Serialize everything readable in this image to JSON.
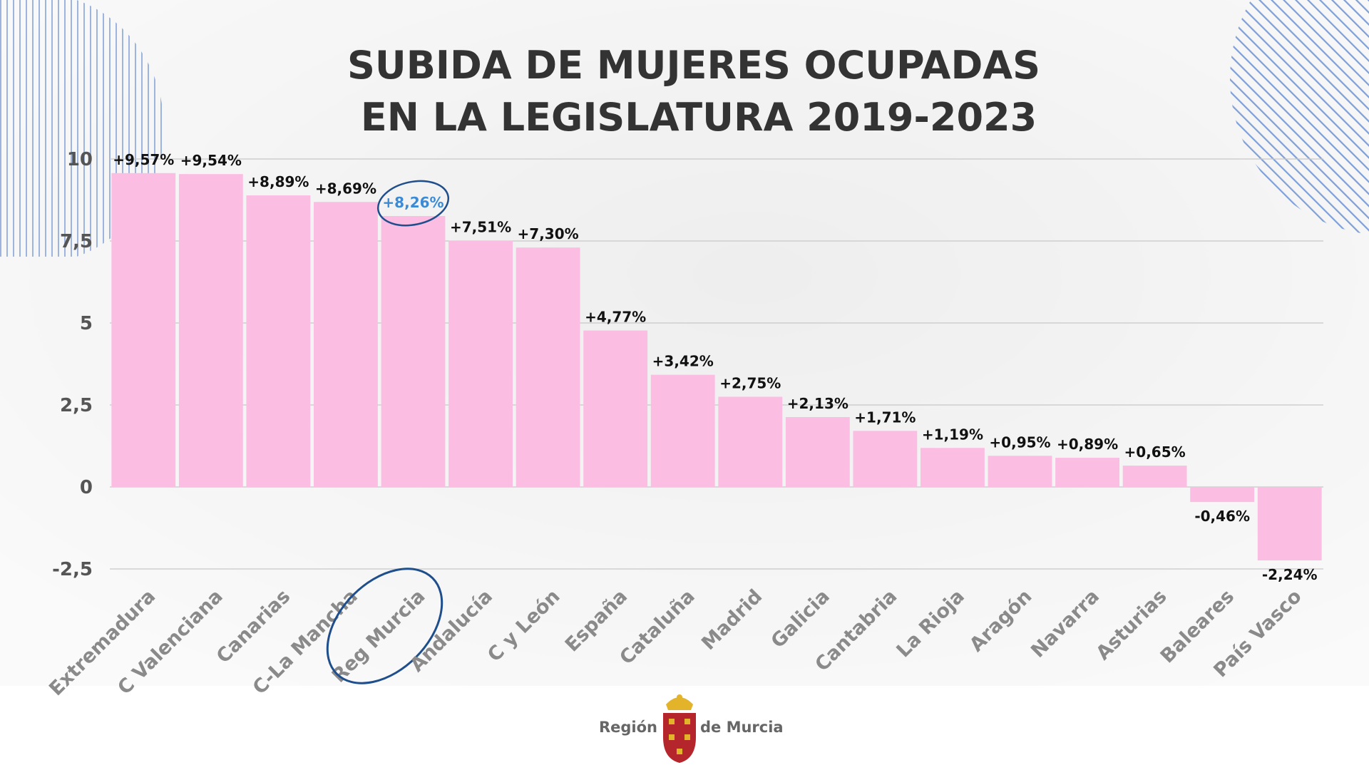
{
  "chart_data": {
    "type": "bar",
    "title": [
      "SUBIDA DE MUJERES OCUPADAS",
      "EN LA LEGISLATURA 2019-2023"
    ],
    "categories": [
      "Extremadura",
      "C Valenciana",
      "Canarias",
      "C-La Mancha",
      "Reg Murcia",
      "Andalucía",
      "C y León",
      "España",
      "Cataluña",
      "Madrid",
      "Galicia",
      "Cantabria",
      "La Rioja",
      "Aragón",
      "Navarra",
      "Asturias",
      "Baleares",
      "País Vasco"
    ],
    "values": [
      9.57,
      9.54,
      8.89,
      8.69,
      8.26,
      7.51,
      7.3,
      4.77,
      3.42,
      2.75,
      2.13,
      1.71,
      1.19,
      0.95,
      0.89,
      0.65,
      -0.46,
      -2.24
    ],
    "value_labels": [
      "+9,57%",
      "+9,54%",
      "+8,89%",
      "+8,69%",
      "+8,26%",
      "+7,51%",
      "+7,30%",
      "+4,77%",
      "+3,42%",
      "+2,75%",
      "+2,13%",
      "+1,71%",
      "+1,19%",
      "+0,95%",
      "+0,89%",
      "+0,65%",
      "-0,46%",
      "-2,24%"
    ],
    "color": "#fbbde2",
    "highlight": "Reg Murcia",
    "highlight_color": "#3a8ad6",
    "ylim": [
      -2.5,
      10
    ],
    "yticks": [
      10,
      {
        "value": 7.5,
        "label": "7,5"
      },
      5,
      {
        "value": 2.5,
        "label": "2,5"
      },
      0,
      {
        "value": -2.5,
        "label": "-2,5"
      }
    ],
    "grid": true
  },
  "footer": {
    "left": "Región",
    "right": "de Murcia"
  }
}
